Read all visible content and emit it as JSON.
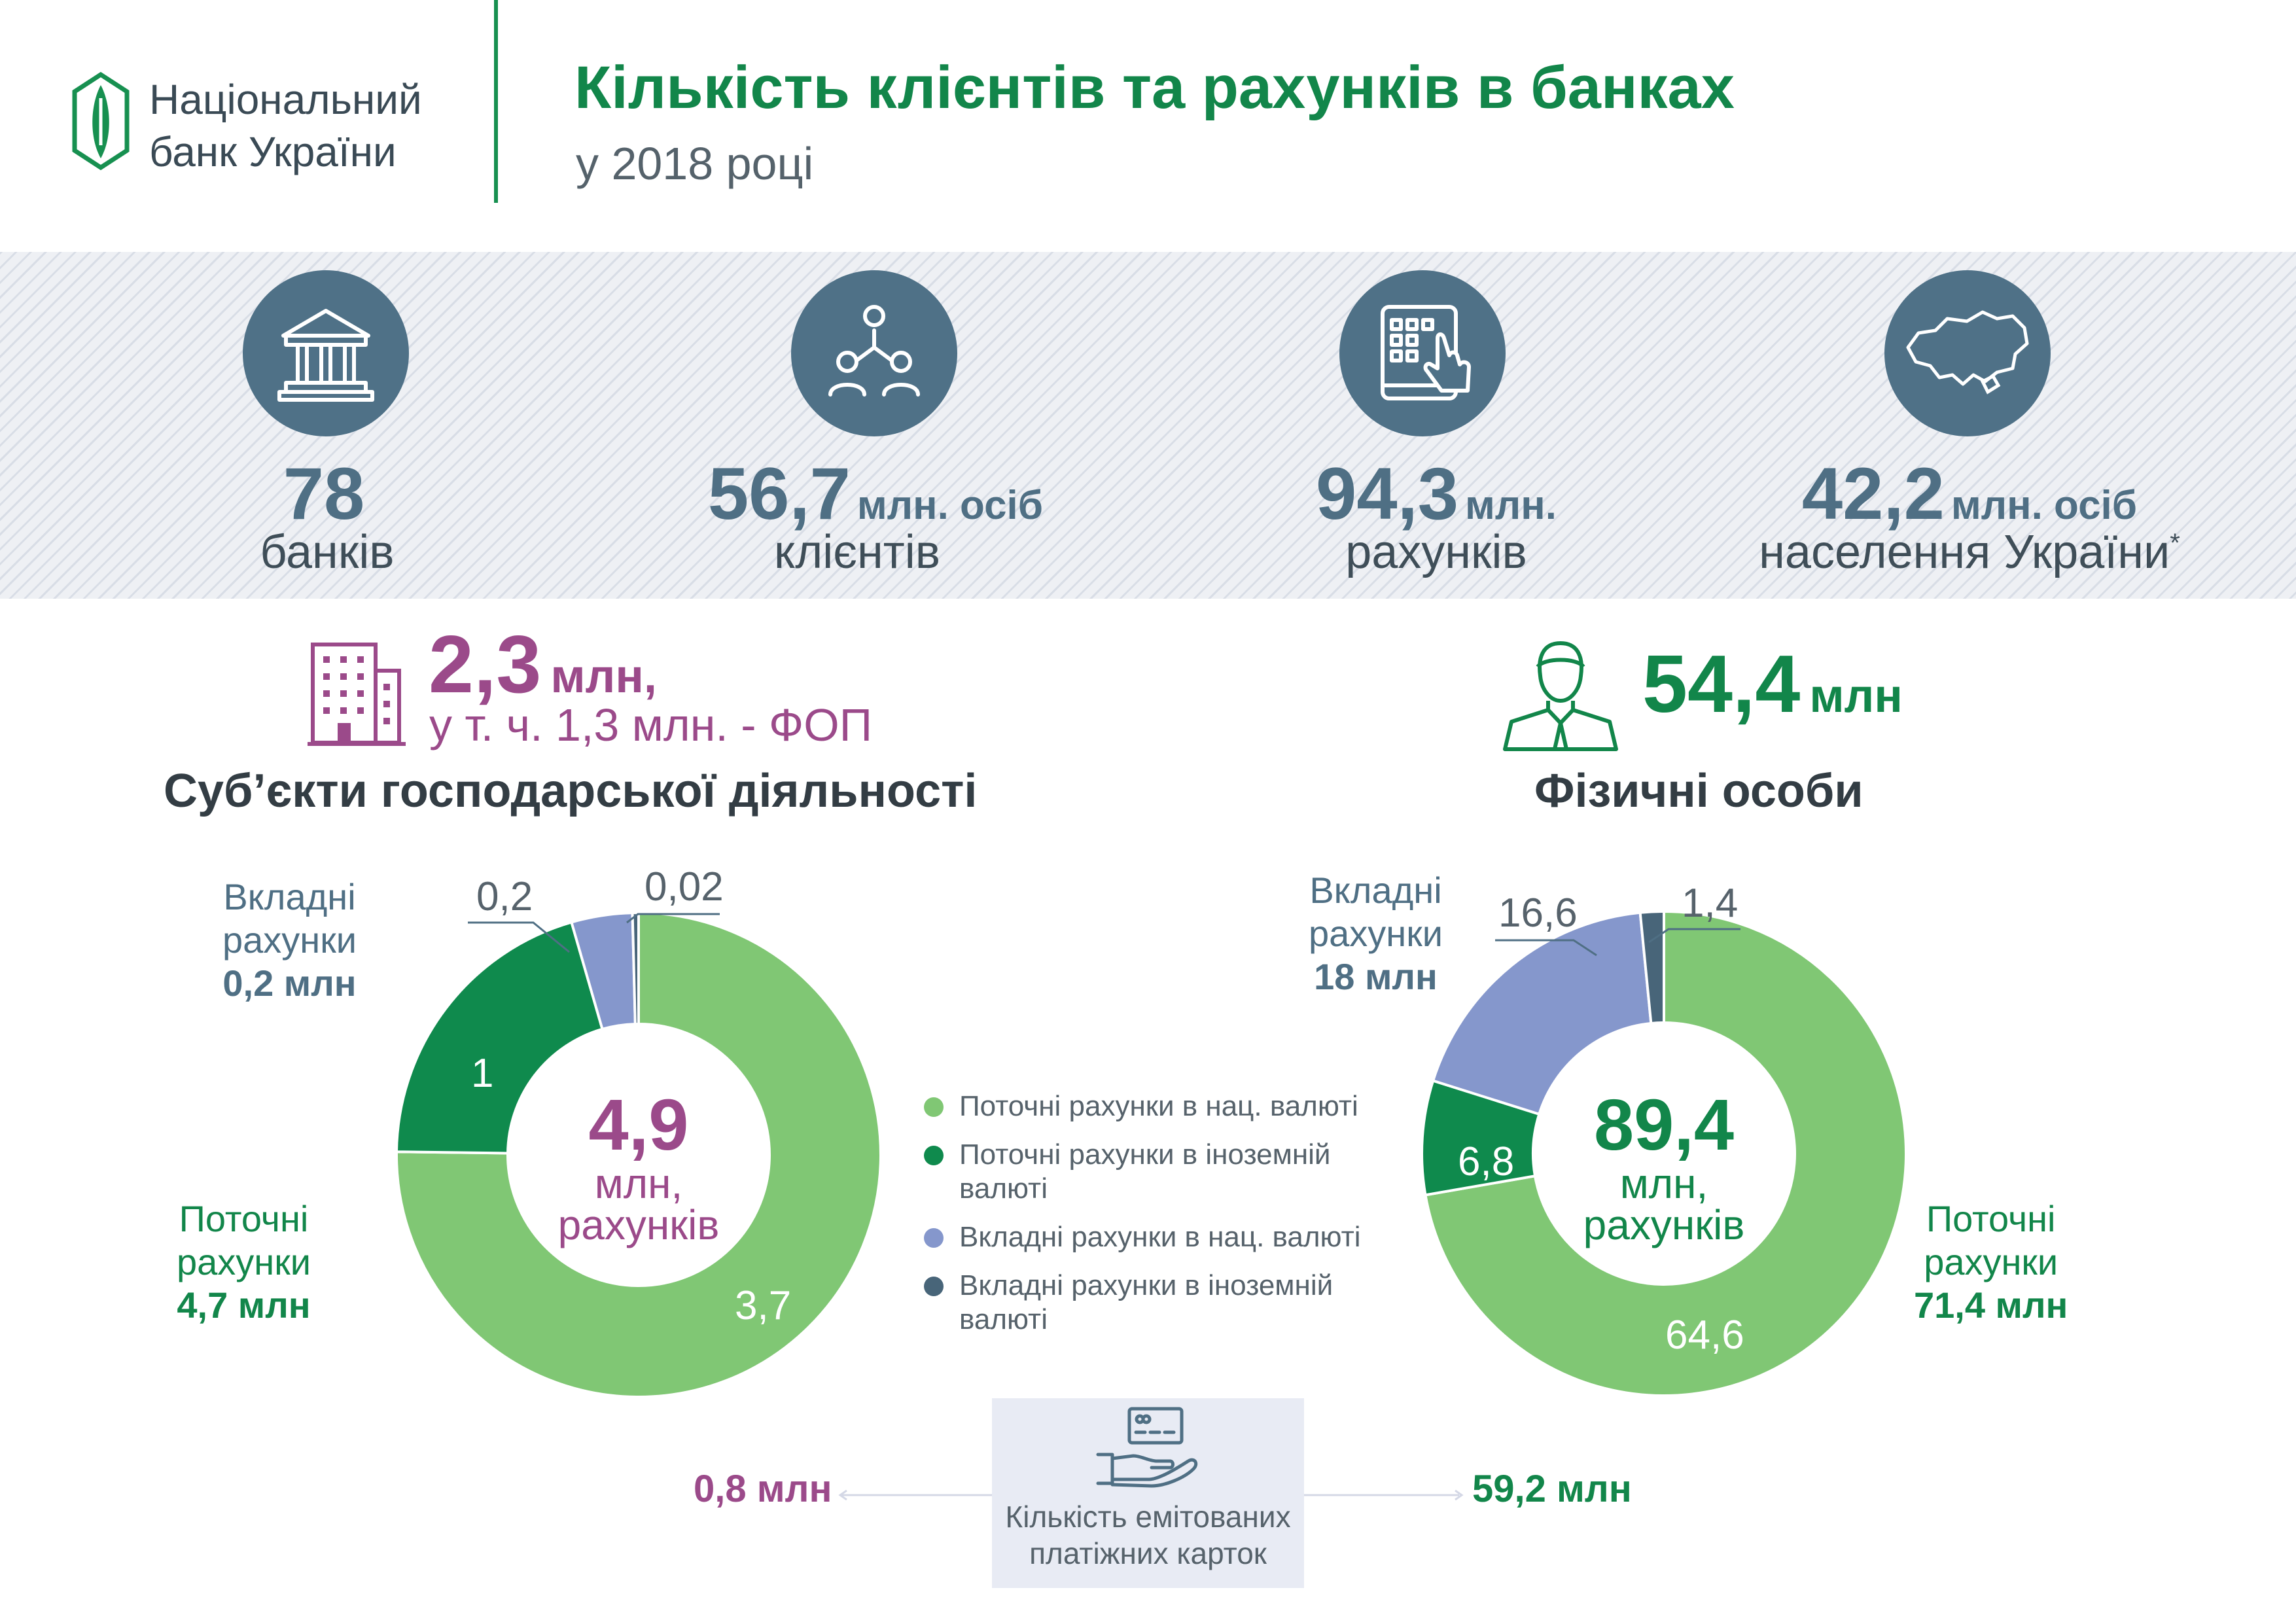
{
  "header": {
    "logo_line1": "Національний",
    "logo_line2": "банк України",
    "title": "Кількість клієнтів та рахунків в банках",
    "subtitle": "у 2018 році"
  },
  "stats": [
    {
      "icon": "bank-building-icon",
      "value": "78",
      "unit": "",
      "label": "банків",
      "note": ""
    },
    {
      "icon": "people-network-icon",
      "value": "56,7",
      "unit": "млн. осіб",
      "label": "клієнтів",
      "note": ""
    },
    {
      "icon": "tablet-touch-icon",
      "value": "94,3",
      "unit": "млн.",
      "label": "рахунків",
      "note": ""
    },
    {
      "icon": "ukraine-map-icon",
      "value": "42,2",
      "unit": "млн. осіб",
      "label": "населення України",
      "note": "*"
    }
  ],
  "business": {
    "value": "2,3",
    "unit": "млн,",
    "sub": "у т. ч. 1,3 млн. - ФОП",
    "title": "Суб’єкти господарської діяльності",
    "center_value": "4,9",
    "center_line1": "млн,",
    "center_line2": "рахунків",
    "deposit_label": [
      "Вкладні",
      "рахунки"
    ],
    "deposit_total": "0,2 млн",
    "current_label": [
      "Поточні",
      "рахунки"
    ],
    "current_total": "4,7 млн"
  },
  "individuals": {
    "value": "54,4",
    "unit": "млн",
    "title": "Фізичні особи",
    "center_value": "89,4",
    "center_line1": "млн,",
    "center_line2": "рахунків",
    "deposit_label": [
      "Вкладні",
      "рахунки"
    ],
    "deposit_total": "18 млн",
    "current_label": [
      "Поточні",
      "рахунки"
    ],
    "current_total": "71,4 млн"
  },
  "legend": [
    {
      "label": "Поточні рахунки в нац. валюті",
      "color": "#80c774"
    },
    {
      "label": "Поточні рахунки в іноземній валюті",
      "color": "#0f8a4d"
    },
    {
      "label": "Вкладні рахунки в нац. валюті",
      "color": "#8597cc"
    },
    {
      "label": "Вкладні рахунки в іноземній валюті",
      "color": "#486579"
    }
  ],
  "cards": {
    "label": "Кількість емітованих платіжних карток",
    "business": "0,8 млн",
    "individuals": "59,2 млн",
    "icon": "card-hand-icon"
  },
  "colors": {
    "green": "#12864a",
    "purple": "#9b4a8a",
    "slate": "#4f6f84"
  },
  "chart_data": [
    {
      "type": "pie",
      "title": "Суб’єкти господарської діяльності",
      "categories": [
        "Поточні рахунки в нац. валюті",
        "Поточні рахунки в іноземній валюті",
        "Вкладні рахунки в нац. валюті",
        "Вкладні рахунки в іноземній валюті"
      ],
      "values": [
        3.7,
        1,
        0.2,
        0.02
      ],
      "labels": [
        "3,7",
        "1",
        "0,2",
        "0,02"
      ],
      "total": 4.9
    },
    {
      "type": "pie",
      "title": "Фізичні особи",
      "categories": [
        "Поточні рахунки в нац. валюті",
        "Поточні рахунки в іноземній валюті",
        "Вкладні рахунки в нац. валюті",
        "Вкладні рахунки в іноземній валюті"
      ],
      "values": [
        64.6,
        6.8,
        16.6,
        1.4
      ],
      "labels": [
        "64,6",
        "6,8",
        "16,6",
        "1,4"
      ],
      "total": 89.4
    }
  ]
}
